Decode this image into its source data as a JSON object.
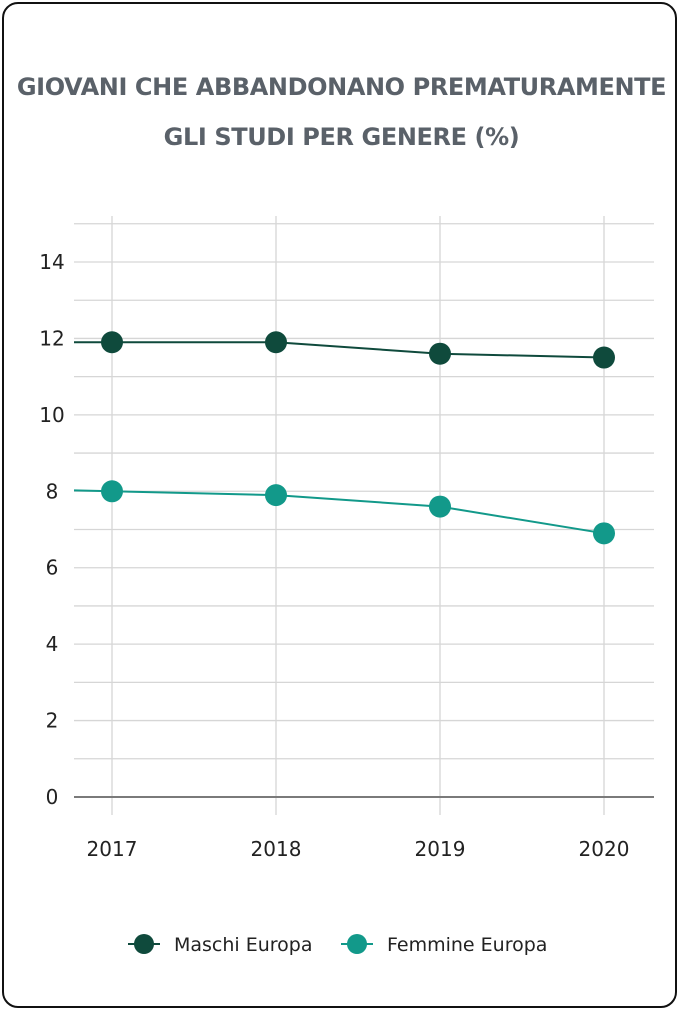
{
  "title_lines": [
    "GIOVANI CHE ABBANDONANO PREMATURAMENTE",
    "GLI STUDI PER GENERE (%)"
  ],
  "colors": {
    "maschi": "#0f4a3c",
    "femmine": "#12998a",
    "grid": "#d6d6d6",
    "axis": "#7a7a7a"
  },
  "chart_data": {
    "type": "line",
    "title": "GIOVANI CHE ABBANDONANO PREMATURAMENTE GLI STUDI PER GENERE (%)",
    "xlabel": "",
    "ylabel": "",
    "categories": [
      "2017",
      "2018",
      "2019",
      "2020"
    ],
    "ylim": [
      0,
      14
    ],
    "yticks": [
      0,
      2,
      4,
      6,
      8,
      10,
      12,
      14
    ],
    "grid": true,
    "legend": "bottom",
    "series": [
      {
        "name": "Maschi Europa",
        "values": [
          11.9,
          11.9,
          11.6,
          11.5
        ],
        "color": "#0f4a3c"
      },
      {
        "name": "Femmine Europa",
        "values": [
          8.0,
          7.9,
          7.6,
          6.9
        ],
        "color": "#12998a"
      }
    ]
  }
}
